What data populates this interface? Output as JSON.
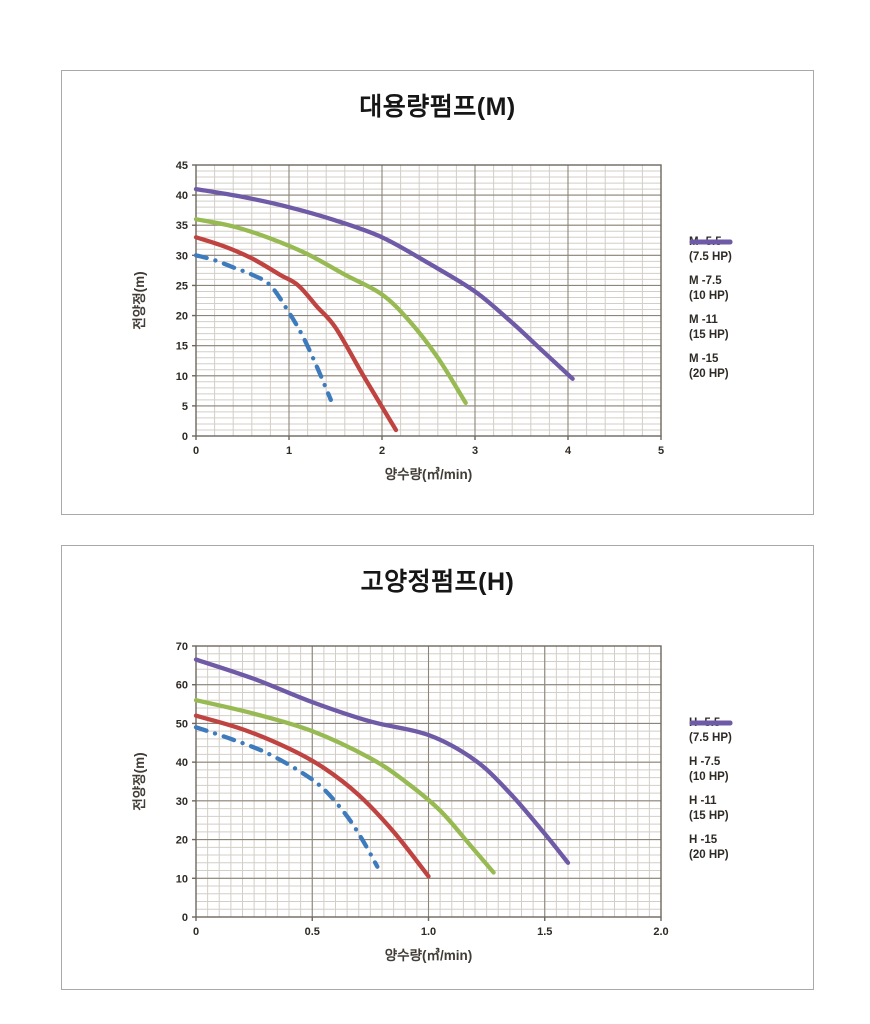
{
  "colors": {
    "background": "#ffffff",
    "panel_border": "#a9a9a9",
    "grid_minor": "#d3cec7",
    "grid_major": "#8d8579",
    "plot_border": "#6e675d",
    "tick_text": "#2e2a25",
    "axis_label_text": "#413c36",
    "title_text": "#161616",
    "series_blue": "#3e7bbd",
    "series_red": "#bf4340",
    "series_green": "#97ba52",
    "series_purple": "#6f5aa7"
  },
  "chart_data": [
    {
      "type": "line",
      "title": "대용량펌프(M)",
      "xlabel": "양수량(㎥/min)",
      "ylabel": "전양정(m)",
      "x_range": [
        0,
        5
      ],
      "y_range": [
        0,
        45
      ],
      "x_major": 1,
      "x_minor": 0.2,
      "y_major": 5,
      "y_minor": 1,
      "grid": true,
      "legend_position": "right",
      "x_tick_labels": [
        "0",
        "1",
        "2",
        "3",
        "4",
        "5"
      ],
      "y_tick_labels": [
        "0",
        "5",
        "10",
        "15",
        "20",
        "25",
        "30",
        "35",
        "40",
        "45"
      ],
      "series": [
        {
          "name": "M -5.5",
          "power": "(7.5 HP)",
          "color": "#3e7bbd",
          "style": "dash-dot",
          "points": [
            [
              0,
              30
            ],
            [
              0.2,
              29.2
            ],
            [
              0.4,
              28
            ],
            [
              0.6,
              26.8
            ],
            [
              0.8,
              25
            ],
            [
              1.0,
              20.5
            ],
            [
              1.15,
              16.5
            ],
            [
              1.3,
              11.5
            ],
            [
              1.45,
              6
            ]
          ]
        },
        {
          "name": "M -7.5",
          "power": "(10 HP)",
          "color": "#bf4340",
          "style": "solid",
          "points": [
            [
              0,
              33
            ],
            [
              0.3,
              31.5
            ],
            [
              0.6,
              29.5
            ],
            [
              0.9,
              26.8
            ],
            [
              1.1,
              25
            ],
            [
              1.3,
              21.5
            ],
            [
              1.5,
              18
            ],
            [
              1.8,
              10
            ],
            [
              2.15,
              1
            ]
          ]
        },
        {
          "name": "M -11",
          "power": "(15 HP)",
          "color": "#97ba52",
          "style": "solid",
          "points": [
            [
              0,
              36
            ],
            [
              0.4,
              34.8
            ],
            [
              0.8,
              32.8
            ],
            [
              1.2,
              30.2
            ],
            [
              1.6,
              26.8
            ],
            [
              2.0,
              23.5
            ],
            [
              2.3,
              19
            ],
            [
              2.6,
              13
            ],
            [
              2.9,
              5.5
            ]
          ]
        },
        {
          "name": "M -15",
          "power": "(20 HP)",
          "color": "#6f5aa7",
          "style": "solid",
          "points": [
            [
              0,
              41
            ],
            [
              0.5,
              39.7
            ],
            [
              1.0,
              38
            ],
            [
              1.5,
              35.8
            ],
            [
              2.0,
              33
            ],
            [
              2.5,
              28.7
            ],
            [
              3.0,
              24
            ],
            [
              3.4,
              18.8
            ],
            [
              3.7,
              14.5
            ],
            [
              4.05,
              9.5
            ]
          ]
        }
      ]
    },
    {
      "type": "line",
      "title": "고양정펌프(H)",
      "xlabel": "양수량(㎥/min)",
      "ylabel": "전양정(m)",
      "x_range": [
        0,
        2
      ],
      "y_range": [
        0,
        70
      ],
      "x_major": 0.5,
      "x_minor": 0.05,
      "y_major": 10,
      "y_minor": 2,
      "grid": true,
      "legend_position": "right",
      "x_tick_labels": [
        "0",
        "0.5",
        "1.0",
        "1.5",
        "2.0"
      ],
      "y_tick_labels": [
        "0",
        "10",
        "20",
        "30",
        "40",
        "50",
        "60",
        "70"
      ],
      "series": [
        {
          "name": "H -5.5",
          "power": "(7.5 HP)",
          "color": "#3e7bbd",
          "style": "dash-dot",
          "points": [
            [
              0,
              49
            ],
            [
              0.15,
              46
            ],
            [
              0.3,
              42.5
            ],
            [
              0.45,
              37.5
            ],
            [
              0.55,
              33
            ],
            [
              0.65,
              26
            ],
            [
              0.72,
              19.5
            ],
            [
              0.78,
              13
            ]
          ]
        },
        {
          "name": "H -7.5",
          "power": "(10 HP)",
          "color": "#bf4340",
          "style": "solid",
          "points": [
            [
              0,
              52
            ],
            [
              0.2,
              48.5
            ],
            [
              0.4,
              43.5
            ],
            [
              0.55,
              38.5
            ],
            [
              0.7,
              31.5
            ],
            [
              0.85,
              22
            ],
            [
              1.0,
              10.5
            ]
          ]
        },
        {
          "name": "H -11",
          "power": "(15 HP)",
          "color": "#97ba52",
          "style": "solid",
          "points": [
            [
              0,
              56
            ],
            [
              0.25,
              52.5
            ],
            [
              0.5,
              48
            ],
            [
              0.75,
              41
            ],
            [
              0.9,
              35
            ],
            [
              1.05,
              27.5
            ],
            [
              1.18,
              18.5
            ],
            [
              1.28,
              11.5
            ]
          ]
        },
        {
          "name": "H -15",
          "power": "(20 HP)",
          "color": "#6f5aa7",
          "style": "solid",
          "points": [
            [
              0,
              66.5
            ],
            [
              0.25,
              61.5
            ],
            [
              0.5,
              55.5
            ],
            [
              0.75,
              50.5
            ],
            [
              1.0,
              47
            ],
            [
              1.2,
              40.5
            ],
            [
              1.35,
              32
            ],
            [
              1.5,
              21.5
            ],
            [
              1.6,
              14
            ]
          ]
        }
      ]
    }
  ]
}
